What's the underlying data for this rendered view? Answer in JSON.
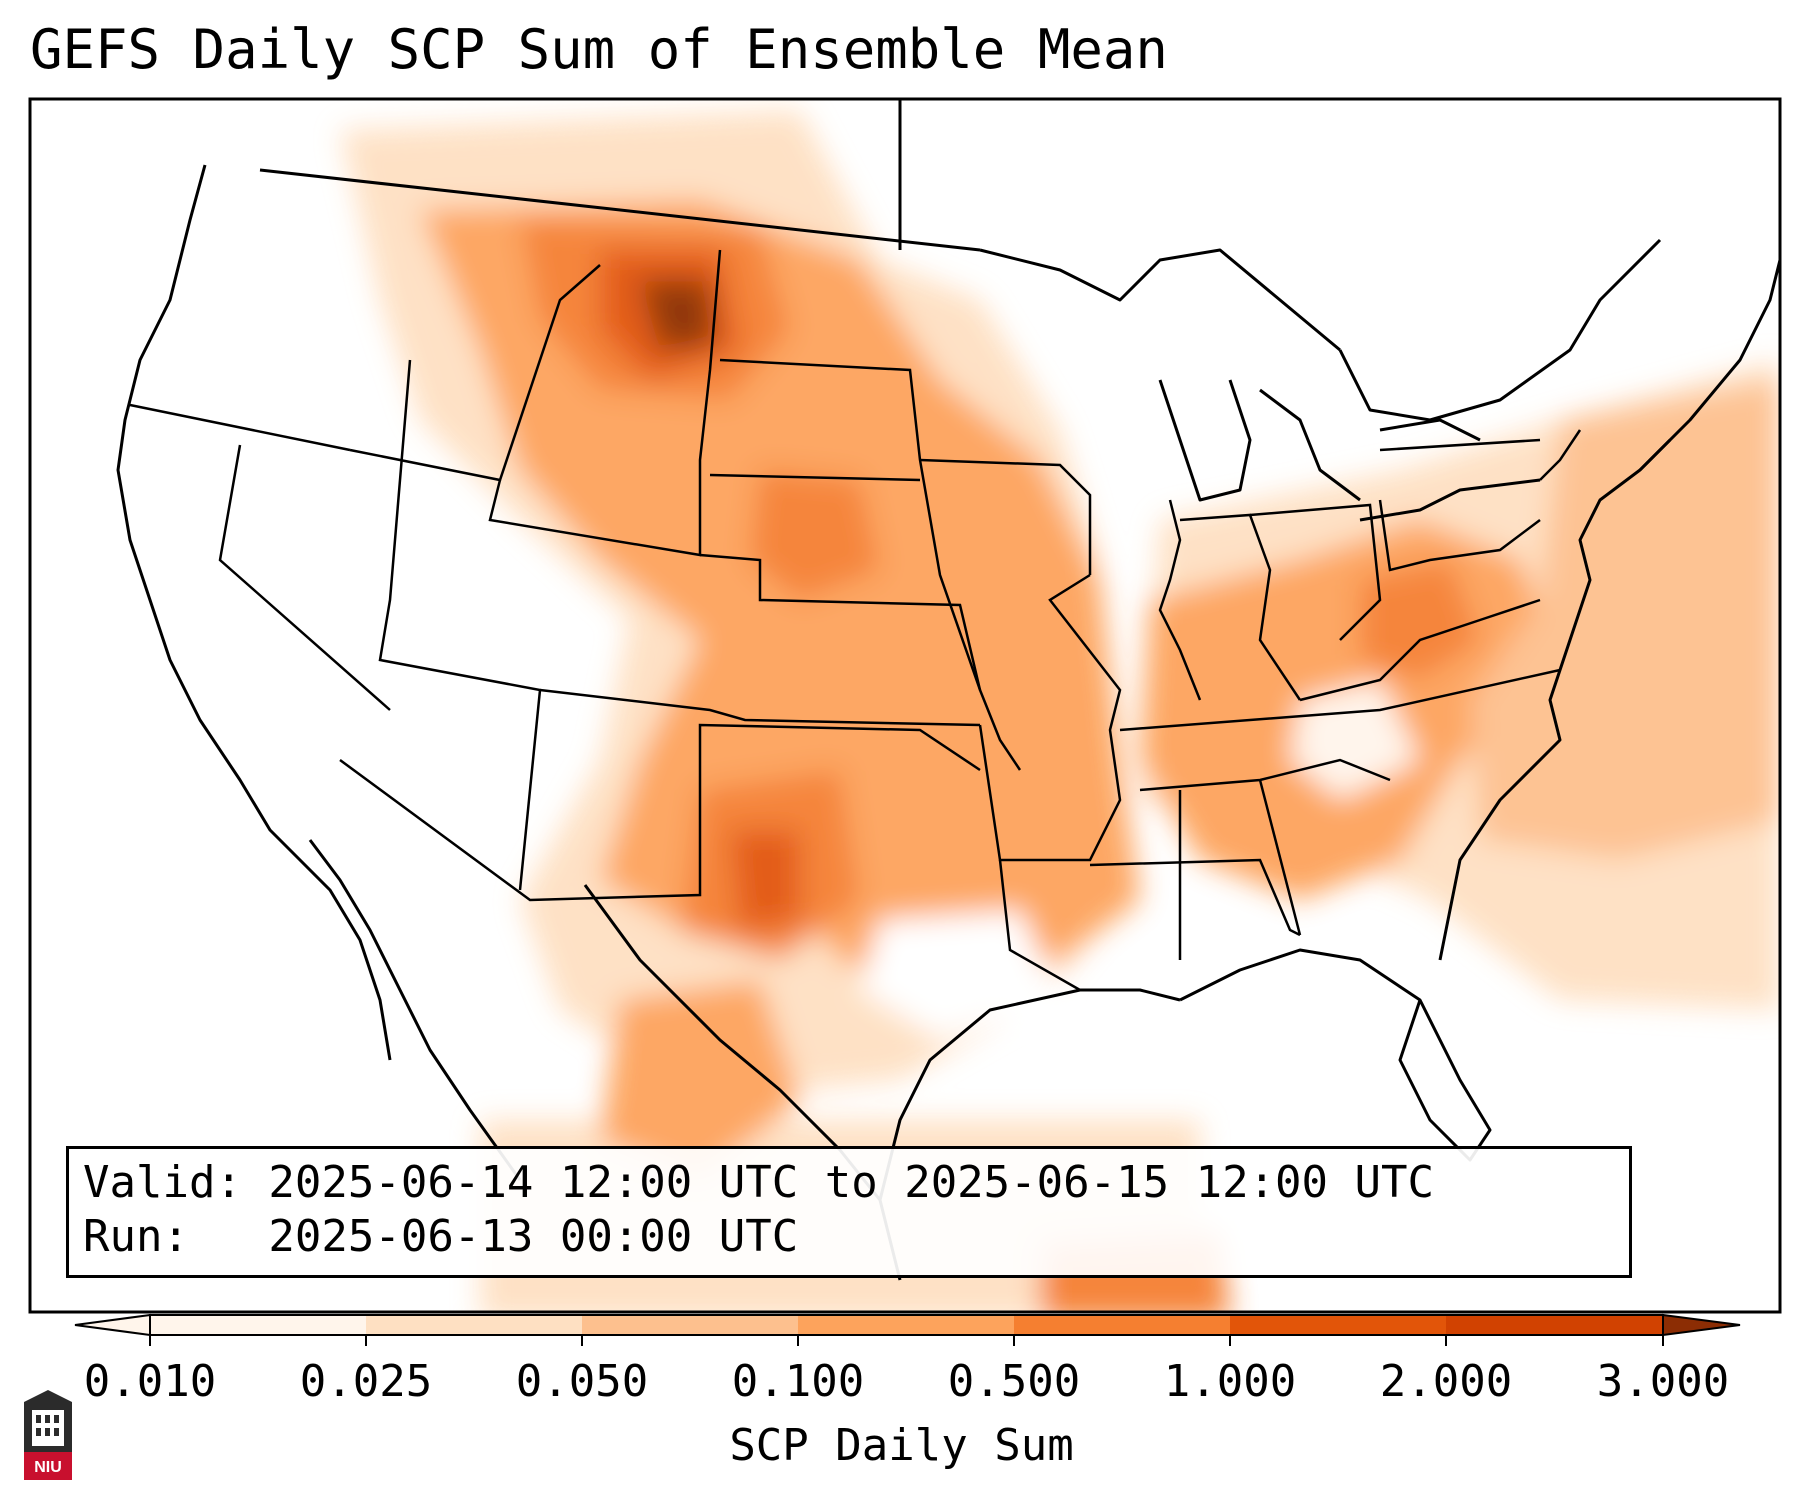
{
  "title": "GEFS Daily SCP Sum of Ensemble Mean",
  "info": {
    "valid": "Valid: 2025-06-14 12:00 UTC to 2025-06-15 12:00 UTC",
    "run": "Run:   2025-06-13 00:00 UTC"
  },
  "colorbar": {
    "label": "SCP Daily Sum",
    "ticks": [
      "0.010",
      "0.025",
      "0.050",
      "0.100",
      "0.500",
      "1.000",
      "2.000",
      "3.000"
    ],
    "colors": [
      "#fff5eb",
      "#fee0c2",
      "#fdc08e",
      "#fda35c",
      "#f57f30",
      "#e25509",
      "#d14201",
      "#8c2d04"
    ]
  },
  "logo": {
    "text": "NIU",
    "color": "#c8102e"
  },
  "icons": {
    "logo": "niu-logo-icon"
  }
}
